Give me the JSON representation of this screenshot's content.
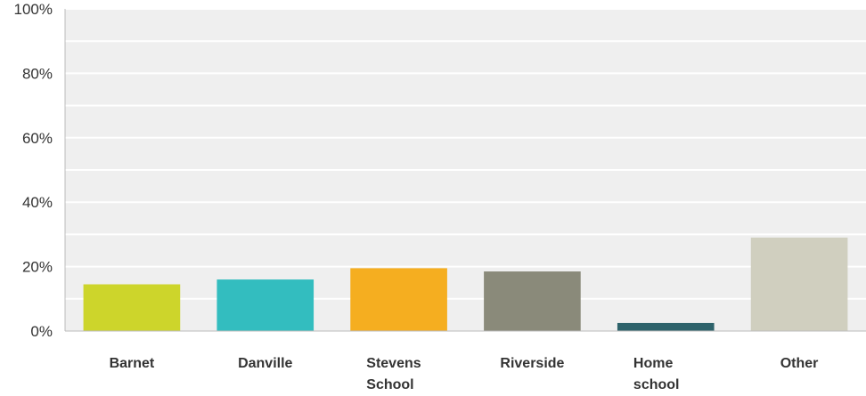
{
  "chart_data": {
    "type": "bar",
    "title": "",
    "xlabel": "",
    "ylabel": "",
    "categories": [
      "Barnet",
      "Danville",
      "Stevens School",
      "Riverside",
      "Home school",
      "Other"
    ],
    "category_lines": [
      [
        "Barnet"
      ],
      [
        "Danville"
      ],
      [
        "Stevens",
        "School"
      ],
      [
        "Riverside"
      ],
      [
        "Home",
        "school"
      ],
      [
        "Other"
      ]
    ],
    "values": [
      14.5,
      16,
      19.5,
      18.5,
      2.5,
      29
    ],
    "colors": [
      "#cdd52b",
      "#33bdbf",
      "#f5ae20",
      "#8a8a7a",
      "#2e636b",
      "#d0cfbf"
    ],
    "ylim": [
      0,
      100
    ],
    "yticks": [
      0,
      20,
      40,
      60,
      80,
      100
    ],
    "ytick_labels": [
      "0%",
      "20%",
      "40%",
      "60%",
      "80%",
      "100%"
    ],
    "grid": true,
    "legend": "none",
    "plot_background": "#efefef",
    "gridline_color": "#ffffff",
    "axis_color": "#bbbbbb"
  }
}
